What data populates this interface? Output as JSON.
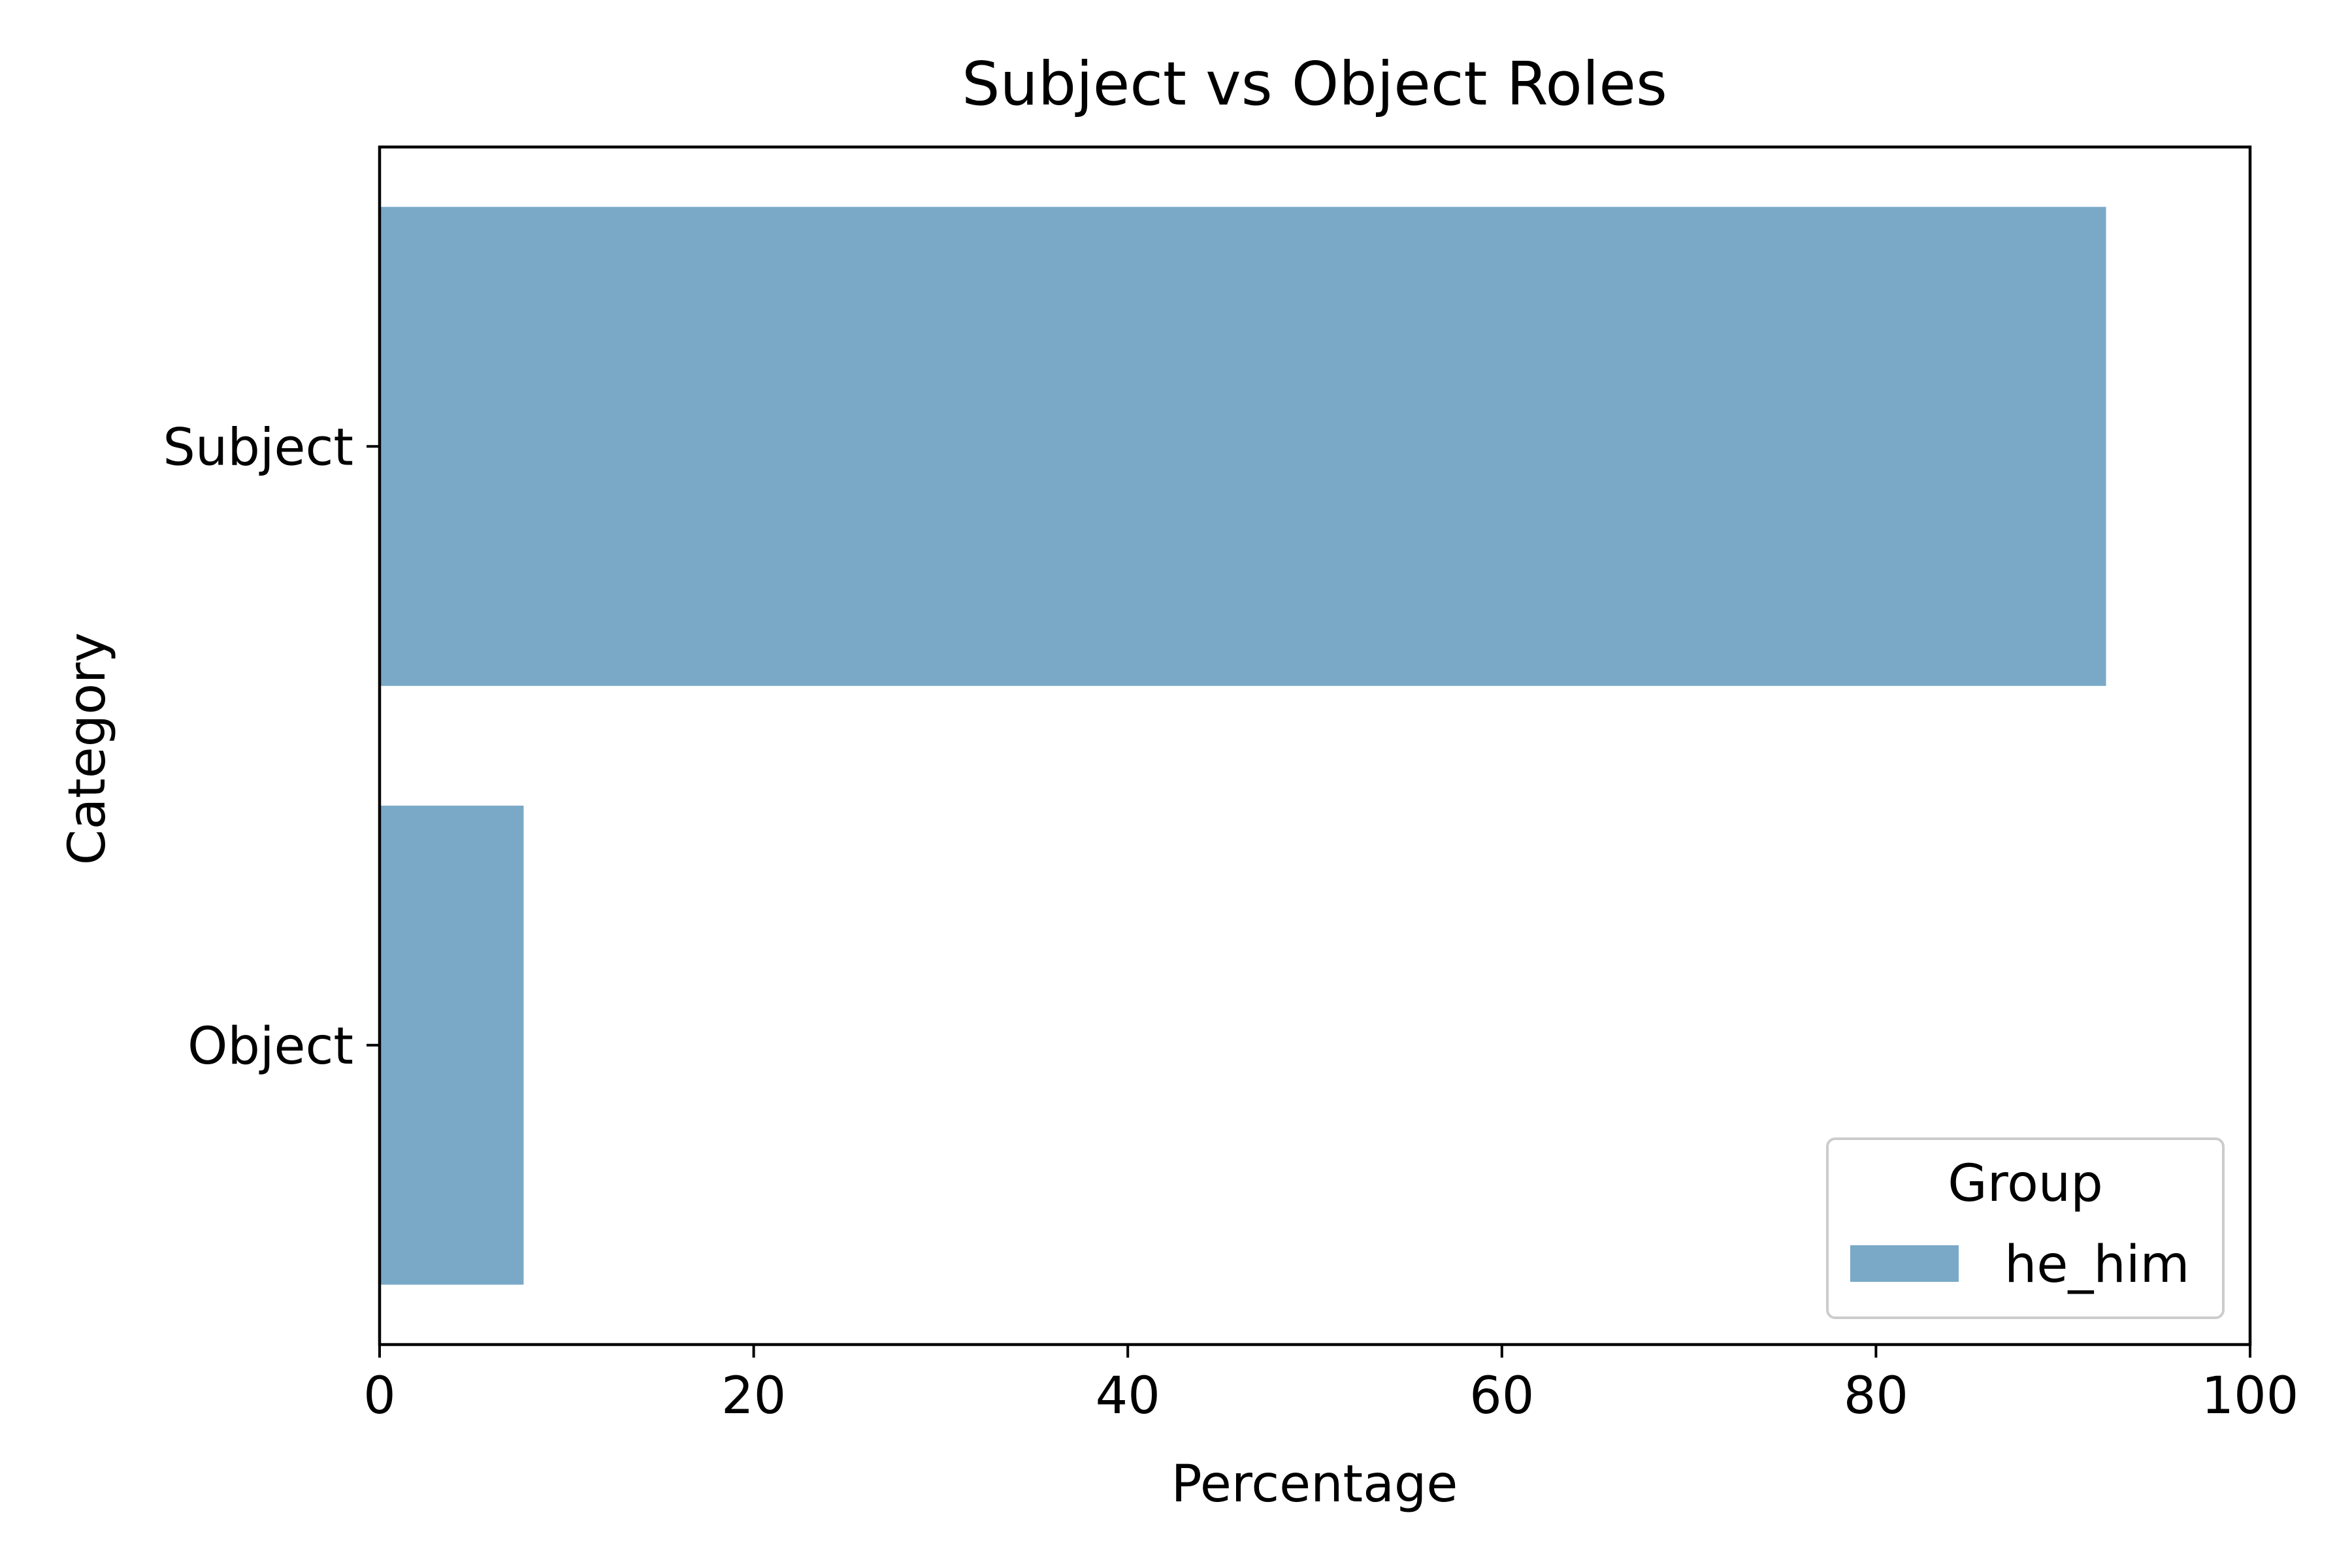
{
  "chart_data": {
    "type": "bar",
    "orientation": "horizontal",
    "title": "Subject vs Object Roles",
    "xlabel": "Percentage",
    "ylabel": "Category",
    "categories": [
      "Subject",
      "Object"
    ],
    "series": [
      {
        "name": "he_him",
        "color": "#7AA9C8",
        "values": [
          92.3,
          7.7
        ]
      }
    ],
    "xlim": [
      0,
      100
    ],
    "xticks": [
      0,
      20,
      40,
      60,
      80,
      100
    ],
    "grid": false,
    "legend": {
      "title": "Group",
      "placement": "lower-right"
    }
  }
}
